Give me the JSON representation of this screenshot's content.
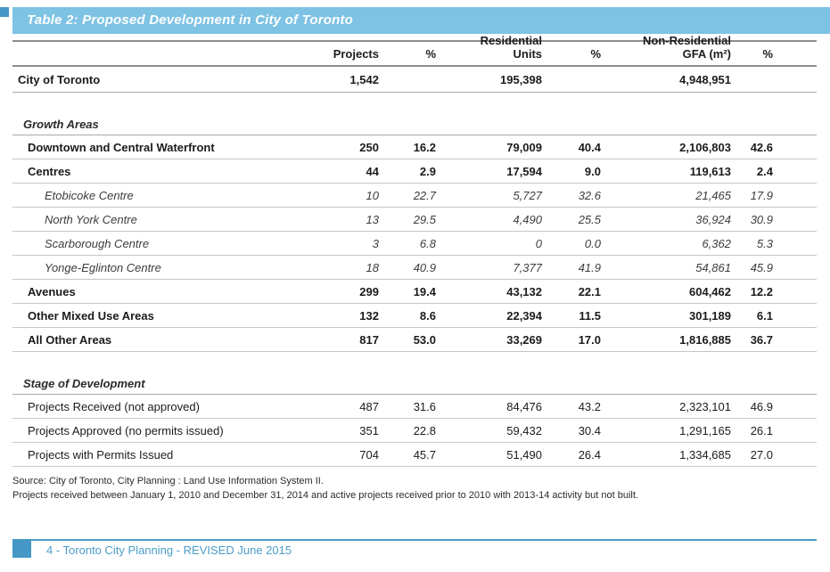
{
  "title": "Table 2: Proposed Development in City of Toronto",
  "colors": {
    "title_bar": "#7ec2e4",
    "accent_square": "#4597c6",
    "footer_blue": "#4b9dc9"
  },
  "header": {
    "columns": [
      {
        "line1": "",
        "line2": ""
      },
      {
        "line1": "",
        "line2": "Projects"
      },
      {
        "line1": "",
        "line2": "%"
      },
      {
        "line1": "Residential",
        "line2": "Units"
      },
      {
        "line1": "",
        "line2": "%"
      },
      {
        "line1": "Non-Residential",
        "line2": "GFA (m²)"
      },
      {
        "line1": "",
        "line2": "%"
      }
    ]
  },
  "chart_data": {
    "type": "table",
    "title": "Table 2: Proposed Development in City of Toronto",
    "columns": [
      "",
      "Projects",
      "%",
      "Residential Units",
      "%",
      "Non-Residential GFA (m²)",
      "%"
    ],
    "rows": [
      {
        "type": "total",
        "label": "City of Toronto",
        "values": [
          "1,542",
          "",
          "195,398",
          "",
          "4,948,951",
          ""
        ]
      },
      {
        "type": "spacer"
      },
      {
        "type": "section",
        "label": "Growth Areas"
      },
      {
        "type": "bold",
        "label": "Downtown and Central Waterfront",
        "values": [
          "250",
          "16.2",
          "79,009",
          "40.4",
          "2,106,803",
          "42.6"
        ]
      },
      {
        "type": "bold",
        "label": "Centres",
        "values": [
          "44",
          "2.9",
          "17,594",
          "9.0",
          "119,613",
          "2.4"
        ]
      },
      {
        "type": "sub",
        "label": "Etobicoke Centre",
        "values": [
          "10",
          "22.7",
          "5,727",
          "32.6",
          "21,465",
          "17.9"
        ]
      },
      {
        "type": "sub",
        "label": "North York Centre",
        "values": [
          "13",
          "29.5",
          "4,490",
          "25.5",
          "36,924",
          "30.9"
        ]
      },
      {
        "type": "sub",
        "label": "Scarborough Centre",
        "values": [
          "3",
          "6.8",
          "0",
          "0.0",
          "6,362",
          "5.3"
        ]
      },
      {
        "type": "sub",
        "label": "Yonge-Eglinton Centre",
        "values": [
          "18",
          "40.9",
          "7,377",
          "41.9",
          "54,861",
          "45.9"
        ]
      },
      {
        "type": "bold",
        "label": "Avenues",
        "values": [
          "299",
          "19.4",
          "43,132",
          "22.1",
          "604,462",
          "12.2"
        ]
      },
      {
        "type": "bold",
        "label": "Other Mixed Use Areas",
        "values": [
          "132",
          "8.6",
          "22,394",
          "11.5",
          "301,189",
          "6.1"
        ]
      },
      {
        "type": "bold",
        "label": "All Other Areas",
        "values": [
          "817",
          "53.0",
          "33,269",
          "17.0",
          "1,816,885",
          "36.7"
        ]
      },
      {
        "type": "spacer"
      },
      {
        "type": "section",
        "label": "Stage of Development"
      },
      {
        "type": "regular",
        "label": "Projects Received (not approved)",
        "values": [
          "487",
          "31.6",
          "84,476",
          "43.2",
          "2,323,101",
          "46.9"
        ]
      },
      {
        "type": "regular",
        "label": "Projects Approved (no permits issued)",
        "values": [
          "351",
          "22.8",
          "59,432",
          "30.4",
          "1,291,165",
          "26.1"
        ]
      },
      {
        "type": "regular",
        "label": "Projects with Permits Issued",
        "values": [
          "704",
          "45.7",
          "51,490",
          "26.4",
          "1,334,685",
          "27.0"
        ]
      }
    ]
  },
  "footnotes": [
    "Source: City of Toronto, City Planning : Land Use Information System II.",
    "Projects received between January 1, 2010 and December 31, 2014 and active projects received prior to 2010 with 2013-14 activity but not built."
  ],
  "footer": {
    "text": "4 - Toronto City Planning - REVISED June 2015"
  }
}
